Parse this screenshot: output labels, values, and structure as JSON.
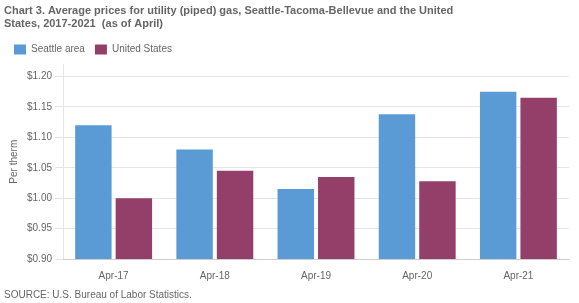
{
  "chart_data": {
    "type": "bar",
    "title": [
      "Chart 3. Average prices for utility (piped) gas, Seattle-Tacoma-Bellevue and the United",
      "States, 2017-2021  (as of April)"
    ],
    "ylabel": "Per therm",
    "annotations": [
      "SOURCE: U.S. Bureau of Labor Statistics."
    ],
    "categories": [
      "Apr-17",
      "Apr-18",
      "Apr-19",
      "Apr-20",
      "Apr-21"
    ],
    "series": [
      {
        "name": "Seattle area",
        "color": "#5B9BD5",
        "values": [
          1.12,
          1.08,
          1.015,
          1.138,
          1.175
        ]
      },
      {
        "name": "United States",
        "color": "#943F6A",
        "values": [
          1.0,
          1.045,
          1.035,
          1.028,
          1.165
        ]
      }
    ],
    "ylim": [
      0.9,
      1.22
    ],
    "yticks": [
      {
        "value": 0.9,
        "label": "$0.90"
      },
      {
        "value": 0.95,
        "label": "$0.95"
      },
      {
        "value": 1.0,
        "label": "$1.00"
      },
      {
        "value": 1.05,
        "label": "$1.05"
      },
      {
        "value": 1.1,
        "label": "$1.10"
      },
      {
        "value": 1.15,
        "label": "$1.15"
      },
      {
        "value": 1.2,
        "label": "$1.20"
      }
    ],
    "grid": true,
    "legend": "upper left"
  }
}
